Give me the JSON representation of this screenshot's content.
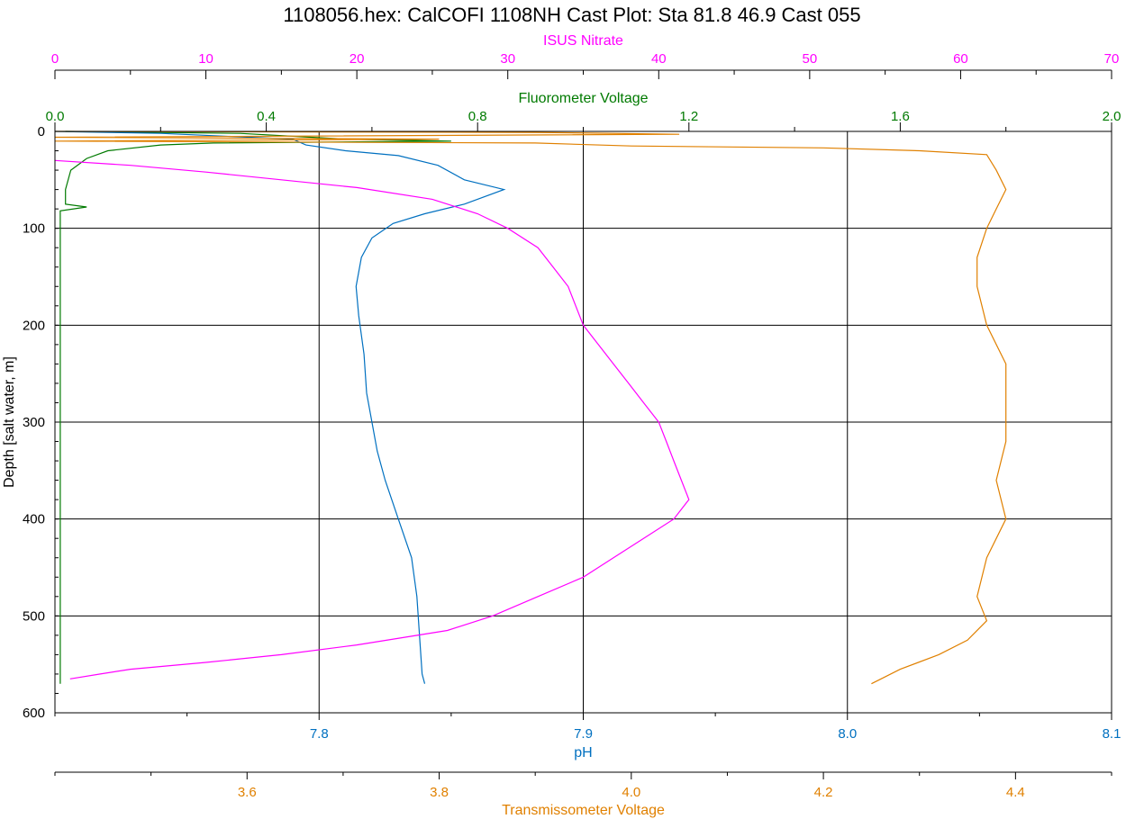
{
  "chart_data": {
    "type": "line",
    "title": "1108056.hex: CalCOFI 1108NH Cast Plot: Sta 81.8 46.9 Cast 055",
    "y_axis": {
      "label": "Depth [salt water, m]",
      "range": [
        0,
        600
      ],
      "ticks": [
        0,
        100,
        200,
        300,
        400,
        500,
        600
      ],
      "tick_labels": [
        "0",
        "100",
        "200",
        "300",
        "400",
        "500",
        "600"
      ],
      "inverted": true
    },
    "x_axes": [
      {
        "id": "nitrate",
        "label": "ISUS Nitrate",
        "position": "top",
        "range": [
          0,
          70
        ],
        "ticks": [
          0,
          10,
          20,
          30,
          40,
          50,
          60,
          70
        ],
        "tick_labels": [
          "0",
          "10",
          "20",
          "30",
          "40",
          "50",
          "60",
          "70"
        ],
        "color": "#ff00ff"
      },
      {
        "id": "fluor",
        "label": "Fluorometer Voltage",
        "position": "top",
        "range": [
          0.0,
          2.0
        ],
        "ticks": [
          0.0,
          0.4,
          0.8,
          1.2,
          1.6,
          2.0
        ],
        "tick_labels": [
          "0.0",
          "0.4",
          "0.8",
          "1.2",
          "1.6",
          "2.0"
        ],
        "color": "#007a00"
      },
      {
        "id": "ph",
        "label": "pH",
        "position": "bottom",
        "range": [
          7.7,
          8.1
        ],
        "ticks": [
          7.8,
          7.9,
          8.0,
          8.1
        ],
        "tick_labels": [
          "7.8",
          "7.9",
          "8.0",
          "8.1"
        ],
        "color": "#0070c0"
      },
      {
        "id": "trans",
        "label": "Transmissometer Voltage",
        "position": "bottom",
        "range": [
          3.4,
          4.5
        ],
        "ticks": [
          3.6,
          3.8,
          4.0,
          4.2,
          4.4
        ],
        "tick_labels": [
          "3.6",
          "3.8",
          "4.0",
          "4.2",
          "4.4"
        ],
        "color": "#e08000"
      }
    ],
    "grid": true,
    "series": [
      {
        "axis": "fluor",
        "color": "#007a00",
        "points": [
          [
            0.02,
            0
          ],
          [
            0.35,
            2
          ],
          [
            0.55,
            8
          ],
          [
            0.75,
            10
          ],
          [
            0.3,
            12
          ],
          [
            0.2,
            14
          ],
          [
            0.1,
            20
          ],
          [
            0.06,
            28
          ],
          [
            0.03,
            40
          ],
          [
            0.02,
            60
          ],
          [
            0.02,
            75
          ],
          [
            0.06,
            78
          ],
          [
            0.01,
            82
          ],
          [
            0.01,
            150
          ],
          [
            0.01,
            300
          ],
          [
            0.01,
            450
          ],
          [
            0.01,
            570
          ]
        ]
      },
      {
        "axis": "ph",
        "color": "#0070c0",
        "points": [
          [
            7.7,
            0
          ],
          [
            7.74,
            2
          ],
          [
            7.79,
            8
          ],
          [
            7.795,
            14
          ],
          [
            7.81,
            20
          ],
          [
            7.83,
            25
          ],
          [
            7.845,
            35
          ],
          [
            7.855,
            50
          ],
          [
            7.87,
            60
          ],
          [
            7.855,
            75
          ],
          [
            7.84,
            85
          ],
          [
            7.828,
            95
          ],
          [
            7.82,
            110
          ],
          [
            7.816,
            130
          ],
          [
            7.814,
            160
          ],
          [
            7.815,
            190
          ],
          [
            7.817,
            230
          ],
          [
            7.818,
            270
          ],
          [
            7.82,
            300
          ],
          [
            7.822,
            330
          ],
          [
            7.825,
            360
          ],
          [
            7.83,
            400
          ],
          [
            7.835,
            440
          ],
          [
            7.837,
            480
          ],
          [
            7.838,
            520
          ],
          [
            7.839,
            560
          ],
          [
            7.84,
            570
          ]
        ]
      },
      {
        "axis": "trans",
        "color": "#e08000",
        "points": [
          [
            3.4,
            0
          ],
          [
            3.9,
            1
          ],
          [
            4.05,
            3
          ],
          [
            3.4,
            6
          ],
          [
            3.8,
            8
          ],
          [
            3.4,
            10
          ],
          [
            3.9,
            12
          ],
          [
            4.0,
            15
          ],
          [
            4.2,
            17
          ],
          [
            4.3,
            20
          ],
          [
            4.37,
            24
          ],
          [
            4.38,
            40
          ],
          [
            4.39,
            60
          ],
          [
            4.38,
            80
          ],
          [
            4.37,
            100
          ],
          [
            4.36,
            130
          ],
          [
            4.36,
            160
          ],
          [
            4.37,
            200
          ],
          [
            4.39,
            240
          ],
          [
            4.39,
            280
          ],
          [
            4.39,
            320
          ],
          [
            4.38,
            360
          ],
          [
            4.39,
            400
          ],
          [
            4.37,
            440
          ],
          [
            4.36,
            480
          ],
          [
            4.37,
            505
          ],
          [
            4.35,
            525
          ],
          [
            4.32,
            540
          ],
          [
            4.28,
            555
          ],
          [
            4.26,
            565
          ],
          [
            4.25,
            570
          ]
        ]
      },
      {
        "axis": "nitrate",
        "color": "#ff00ff",
        "points": [
          [
            0,
            30
          ],
          [
            5,
            35
          ],
          [
            10,
            42
          ],
          [
            15,
            50
          ],
          [
            20,
            58
          ],
          [
            25,
            70
          ],
          [
            28,
            85
          ],
          [
            30,
            100
          ],
          [
            32,
            120
          ],
          [
            33,
            140
          ],
          [
            34,
            160
          ],
          [
            34.5,
            180
          ],
          [
            35,
            200
          ],
          [
            36,
            220
          ],
          [
            37,
            240
          ],
          [
            38,
            260
          ],
          [
            39,
            280
          ],
          [
            40,
            300
          ],
          [
            40.5,
            320
          ],
          [
            41,
            340
          ],
          [
            41.5,
            360
          ],
          [
            42,
            380
          ],
          [
            41,
            400
          ],
          [
            39,
            420
          ],
          [
            37,
            440
          ],
          [
            35,
            460
          ],
          [
            32,
            480
          ],
          [
            29,
            500
          ],
          [
            26,
            515
          ],
          [
            20,
            530
          ],
          [
            15,
            540
          ],
          [
            10,
            548
          ],
          [
            5,
            555
          ],
          [
            3,
            560
          ],
          [
            1,
            565
          ]
        ]
      }
    ]
  }
}
